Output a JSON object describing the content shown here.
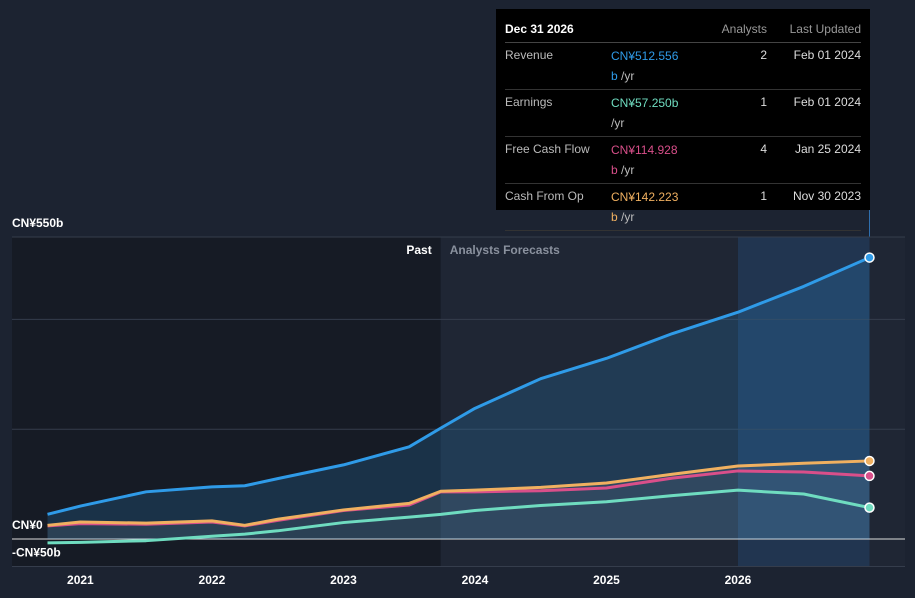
{
  "chart_data": {
    "type": "line",
    "x": [
      2020.75,
      2021,
      2021.5,
      2022,
      2022.25,
      2022.5,
      2023,
      2023.5,
      2023.74,
      2024,
      2024.5,
      2025,
      2025.5,
      2026,
      2026.5,
      2027
    ],
    "series": [
      {
        "name": "Revenue",
        "color": "#2f9be8",
        "values": [
          45,
          60,
          86,
          95,
          97,
          110,
          135,
          168,
          202,
          238,
          292,
          329,
          374,
          413,
          460,
          512.556
        ]
      },
      {
        "name": "Earnings",
        "color": "#6fdcc0",
        "values": [
          -7,
          -6,
          -3,
          5,
          9,
          15,
          30,
          40,
          45,
          52,
          61,
          68,
          79,
          89,
          82,
          57.25
        ]
      },
      {
        "name": "Free Cash Flow",
        "color": "#d94f8a",
        "values": [
          24,
          28,
          27,
          31,
          24,
          34,
          52,
          62,
          86,
          86,
          88,
          93,
          111,
          124,
          122,
          114.928
        ]
      },
      {
        "name": "Cash From Op",
        "color": "#f0b060",
        "values": [
          25,
          31,
          29,
          33,
          25,
          36,
          53,
          65,
          87,
          89,
          94,
          102,
          118,
          133,
          138,
          142.223
        ]
      }
    ],
    "xlim": [
      2020.48,
      2027.27
    ],
    "xticks": [
      2021,
      2022,
      2023,
      2024,
      2025,
      2026
    ],
    "ylim": [
      -50,
      550
    ],
    "yticks": [
      {
        "value": 550,
        "label": "CN¥550b"
      },
      {
        "value": 0,
        "label": "CN¥0"
      },
      {
        "value": -50,
        "label": "-CN¥50b"
      }
    ],
    "grid_lines": [
      200,
      400
    ],
    "forecast_start": 2023.74,
    "highlight_from": 2026,
    "past_label": "Past",
    "forecast_label": "Analysts Forecasts",
    "tooltip": {
      "date": "Dec 31 2026",
      "analysts_header": "Analysts",
      "updated_header": "Last Updated",
      "rows": [
        {
          "label": "Revenue",
          "value": "CN¥512.556b",
          "unit": "/yr",
          "analysts": 2,
          "updated": "Feb 01 2024"
        },
        {
          "label": "Earnings",
          "value": "CN¥57.250b",
          "unit": "/yr",
          "analysts": 1,
          "updated": "Feb 01 2024"
        },
        {
          "label": "Free Cash Flow",
          "value": "CN¥114.928b",
          "unit": "/yr",
          "analysts": 4,
          "updated": "Jan 25 2024"
        },
        {
          "label": "Cash From Op",
          "value": "CN¥142.223b",
          "unit": "/yr",
          "analysts": 1,
          "updated": "Nov 30 2023"
        }
      ]
    }
  }
}
